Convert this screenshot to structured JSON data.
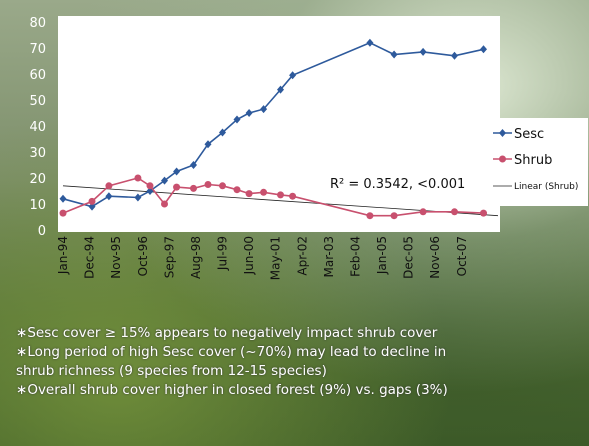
{
  "chart_data": {
    "type": "line",
    "x": [
      "1994-01",
      "1995-01",
      "1995-08",
      "1996-08",
      "1997-01",
      "1997-07",
      "1997-12",
      "1998-07",
      "1999-01",
      "1999-07",
      "2000-01",
      "2000-06",
      "2000-12",
      "2001-07",
      "2001-12",
      "2004-08",
      "2005-06",
      "2006-06",
      "2007-07",
      "2008-07"
    ],
    "series": [
      {
        "name": "Sesc",
        "color": "#2e5a9c",
        "marker": "diamond",
        "values": [
          12,
          9,
          13,
          12.5,
          15,
          19,
          22.5,
          25,
          33,
          37.5,
          42.5,
          45,
          46.5,
          54,
          59.5,
          72,
          67.5,
          68.5,
          67,
          69.5
        ]
      },
      {
        "name": "Shrub",
        "color": "#c8506e",
        "marker": "circle",
        "values": [
          6.5,
          11,
          17,
          20,
          17,
          10,
          16.5,
          16,
          17.5,
          17,
          15.5,
          14,
          14.5,
          13.5,
          13,
          5.5,
          5.5,
          7,
          7,
          6.5
        ]
      }
    ],
    "trendline": {
      "name": "Linear (Shrub)",
      "color": "#222222",
      "x": [
        "1994-01",
        "2009-01"
      ],
      "values": [
        17,
        5.5
      ]
    },
    "annotation": "R² = 0.3542, <0.001",
    "xlim": [
      "1994-01",
      "2009-01"
    ],
    "xticks": [
      {
        "value": "1994-01",
        "label": "Jan-94"
      },
      {
        "value": "1994-12",
        "label": "Dec-94"
      },
      {
        "value": "1995-11",
        "label": "Nov-95"
      },
      {
        "value": "1996-10",
        "label": "Oct-96"
      },
      {
        "value": "1997-09",
        "label": "Sep-97"
      },
      {
        "value": "1998-08",
        "label": "Aug-98"
      },
      {
        "value": "1999-07",
        "label": "Jul-99"
      },
      {
        "value": "2000-06",
        "label": "Jun-00"
      },
      {
        "value": "2001-05",
        "label": "May-01"
      },
      {
        "value": "2002-04",
        "label": "Apr-02"
      },
      {
        "value": "2003-03",
        "label": "Mar-03"
      },
      {
        "value": "2004-02",
        "label": "Feb-04"
      },
      {
        "value": "2005-01",
        "label": "Jan-05"
      },
      {
        "value": "2005-12",
        "label": "Dec-05"
      },
      {
        "value": "2006-11",
        "label": "Nov-06"
      },
      {
        "value": "2007-10",
        "label": "Oct-07"
      }
    ],
    "ylim": [
      0,
      80
    ],
    "yticks": [
      0,
      10,
      20,
      30,
      40,
      50,
      60,
      70,
      80
    ],
    "legend": "right"
  },
  "bullets": [
    "Sesc cover ≥ 15% appears to negatively impact shrub cover",
    "Long period of high Sesc cover (~70%) may lead to decline in",
    "shrub richness (9 species from 12-15 species)",
    "Overall shrub cover higher in closed forest (9%) vs. gaps (3%)"
  ]
}
